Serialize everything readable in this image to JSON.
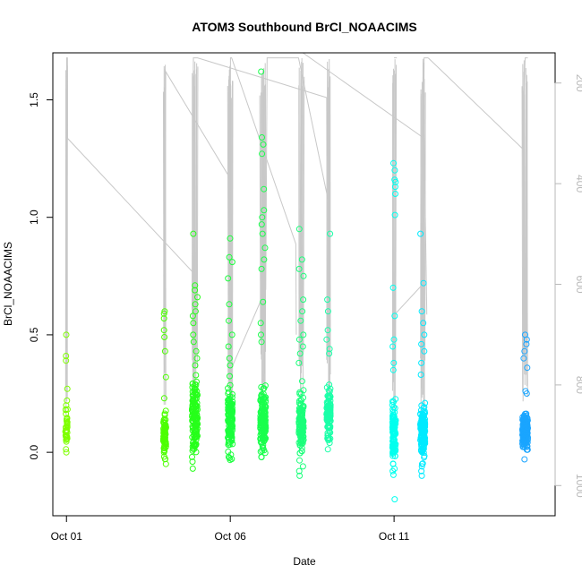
{
  "chart_data": {
    "type": "scatter",
    "title": "ATOM3 Southbound BrCl_NOAACIMS",
    "xlabel": "Date",
    "ylabel": "BrCl_NOAACIMS",
    "xlim": [
      "2017-09-30T14:00",
      "2017-10-15T22:00"
    ],
    "ylim": [
      -0.27,
      1.7
    ],
    "x_ticks": [
      {
        "date": "2017-10-01",
        "label": "Oct 01"
      },
      {
        "date": "2017-10-06",
        "label": "Oct 06"
      },
      {
        "date": "2017-10-11",
        "label": "Oct 11"
      }
    ],
    "y_ticks": [
      {
        "value": 0.0,
        "label": "0.0"
      },
      {
        "value": 0.5,
        "label": "0.5"
      },
      {
        "value": 1.0,
        "label": "1.0"
      },
      {
        "value": 1.5,
        "label": "1.5"
      }
    ],
    "secondary_axis": {
      "position": "right",
      "reversed": true,
      "lim": [
        1060,
        140
      ],
      "color": "#b8b8b8",
      "ticks": [
        {
          "value": 200,
          "label": "200"
        },
        {
          "value": 400,
          "label": "400"
        },
        {
          "value": 600,
          "label": "600"
        },
        {
          "value": 800,
          "label": "800"
        },
        {
          "value": 1000,
          "label": "1000"
        }
      ]
    },
    "grid": false,
    "legend": "none",
    "marker": "open-circle",
    "flights": [
      {
        "center": "2017-10-01T00:00",
        "width_hours": 1.5,
        "color": "#7fff00",
        "n": 40,
        "median": 0.1,
        "spread": 0.07,
        "highs": [
          0.5,
          0.41,
          0.39,
          0.27,
          0.22,
          0.2,
          0.18
        ]
      },
      {
        "center": "2017-10-04T00:00",
        "width_hours": 2.0,
        "color": "#4cff00",
        "n": 70,
        "median": 0.07,
        "spread": 0.09,
        "highs": [
          0.6,
          0.59,
          0.57,
          0.52,
          0.49,
          0.43,
          0.32,
          0.23
        ]
      },
      {
        "center": "2017-10-04T22:00",
        "width_hours": 4.0,
        "color": "#26ff1a",
        "n": 150,
        "median": 0.15,
        "spread": 0.15,
        "highs": [
          0.93,
          0.71,
          0.69,
          0.66,
          0.63,
          0.6,
          0.58,
          0.55,
          0.5,
          0.47,
          0.43,
          0.4,
          0.37
        ],
        "lows": [
          -0.02,
          -0.04
        ]
      },
      {
        "center": "2017-10-06T00:00",
        "width_hours": 3.5,
        "color": "#1aff3c",
        "n": 130,
        "median": 0.12,
        "spread": 0.14,
        "highs": [
          0.91,
          0.83,
          0.81,
          0.74,
          0.63,
          0.56,
          0.5,
          0.45,
          0.4,
          0.37
        ],
        "lows": [
          -0.01,
          -0.02
        ]
      },
      {
        "center": "2017-10-07T00:00",
        "width_hours": 4.0,
        "color": "#1aff4c",
        "n": 150,
        "median": 0.14,
        "spread": 0.13,
        "highs": [
          1.62,
          1.34,
          1.31,
          1.27,
          1.12,
          1.03,
          1.0,
          0.97,
          0.93,
          0.87,
          0.82,
          0.78,
          0.64,
          0.55,
          0.5,
          0.47
        ],
        "lows": [
          -0.02
        ]
      },
      {
        "center": "2017-10-08T04:00",
        "width_hours": 3.5,
        "color": "#1aff7a",
        "n": 130,
        "median": 0.12,
        "spread": 0.13,
        "highs": [
          0.95,
          0.82,
          0.78,
          0.75,
          0.65,
          0.6,
          0.56,
          0.5,
          0.48,
          0.45,
          0.42,
          0.38
        ],
        "lows": [
          -0.06,
          -0.08,
          -0.1
        ]
      },
      {
        "center": "2017-10-09T00:00",
        "width_hours": 3.0,
        "color": "#1affa8",
        "n": 110,
        "median": 0.17,
        "spread": 0.11,
        "highs": [
          0.93,
          0.65,
          0.6,
          0.52,
          0.48,
          0.44,
          0.42
        ],
        "lows": [
          0.04
        ]
      },
      {
        "center": "2017-10-11T00:00",
        "width_hours": 2.5,
        "color": "#00ffee",
        "n": 110,
        "median": 0.08,
        "spread": 0.12,
        "highs": [
          1.23,
          1.2,
          1.16,
          1.15,
          1.13,
          1.1,
          1.01,
          0.7,
          0.58,
          0.48,
          0.45,
          0.38,
          0.35
        ],
        "lows": [
          -0.07,
          -0.08,
          -0.2
        ]
      },
      {
        "center": "2017-10-11T21:00",
        "width_hours": 3.5,
        "color": "#00eaff",
        "n": 150,
        "median": 0.09,
        "spread": 0.1,
        "highs": [
          0.93,
          0.72,
          0.6,
          0.55,
          0.5,
          0.46,
          0.43,
          0.38,
          0.33
        ],
        "lows": [
          -0.05,
          -0.06,
          -0.08,
          -0.1
        ]
      },
      {
        "center": "2017-10-15T00:00",
        "width_hours": 4.0,
        "color": "#1aa5ff",
        "n": 150,
        "median": 0.09,
        "spread": 0.07,
        "highs": [
          0.5,
          0.48,
          0.46,
          0.43,
          0.4,
          0.36,
          0.26,
          0.25
        ],
        "lows": [
          -0.03
        ]
      }
    ],
    "altitude_traces": [
      {
        "color": "#c8c8c8",
        "points": [
          [
            "2017-10-01T00:00",
            480
          ],
          [
            "2017-10-01T00:10",
            150
          ],
          [
            "2017-10-01T00:40",
            150
          ],
          [
            "2017-10-01T00:50",
            310
          ],
          [
            "2017-10-04T22:00",
            580
          ],
          [
            "2017-10-04T22:20",
            680
          ]
        ]
      },
      {
        "color": "#c8c8c8",
        "points": [
          [
            "2017-10-04T00:00",
            555
          ],
          [
            "2017-10-04T00:10",
            175
          ],
          [
            "2017-10-06T00:00",
            390
          ],
          [
            "2017-10-06T00:10",
            150
          ],
          [
            "2017-10-06T01:00",
            150
          ],
          [
            "2017-10-08T00:00",
            520
          ],
          [
            "2017-10-08T00:20",
            700
          ]
        ]
      },
      {
        "color": "#c8c8c8",
        "points": [
          [
            "2017-10-04T20:00",
            650
          ],
          [
            "2017-10-04T21:00",
            150
          ],
          [
            "2017-10-05T00:00",
            150
          ],
          [
            "2017-10-07T00:00",
            190
          ],
          [
            "2017-10-09T00:00",
            230
          ],
          [
            "2017-10-09T00:20",
            690
          ]
        ]
      },
      {
        "color": "#c8c8c8",
        "points": [
          [
            "2017-10-06T02:00",
            760
          ],
          [
            "2017-10-07T02:00",
            610
          ],
          [
            "2017-10-07T03:00",
            150
          ],
          [
            "2017-10-08T00:00",
            150
          ],
          [
            "2017-10-08T02:00",
            150
          ],
          [
            "2017-10-09T01:00",
            450
          ]
        ]
      },
      {
        "color": "#c8c8c8",
        "points": [
          [
            "2017-10-08T00:00",
            130
          ],
          [
            "2017-10-11T22:00",
            310
          ],
          [
            "2017-10-12T00:00",
            660
          ]
        ]
      },
      {
        "color": "#c8c8c8",
        "points": [
          [
            "2017-10-11T00:00",
            720
          ],
          [
            "2017-10-11T00:30",
            660
          ],
          [
            "2017-10-11T21:00",
            600
          ],
          [
            "2017-10-11T22:00",
            150
          ],
          [
            "2017-10-12T01:00",
            150
          ]
        ]
      },
      {
        "color": "#c8c8c8",
        "points": [
          [
            "2017-10-11T00:00",
            150
          ],
          [
            "2017-10-11T02:00",
            150
          ]
        ]
      },
      {
        "color": "#c8c8c8",
        "points": [
          [
            "2017-10-12T01:00",
            150
          ],
          [
            "2017-10-14T22:00",
            330
          ],
          [
            "2017-10-15T00:00",
            150
          ],
          [
            "2017-10-15T02:00",
            150
          ]
        ]
      }
    ]
  }
}
